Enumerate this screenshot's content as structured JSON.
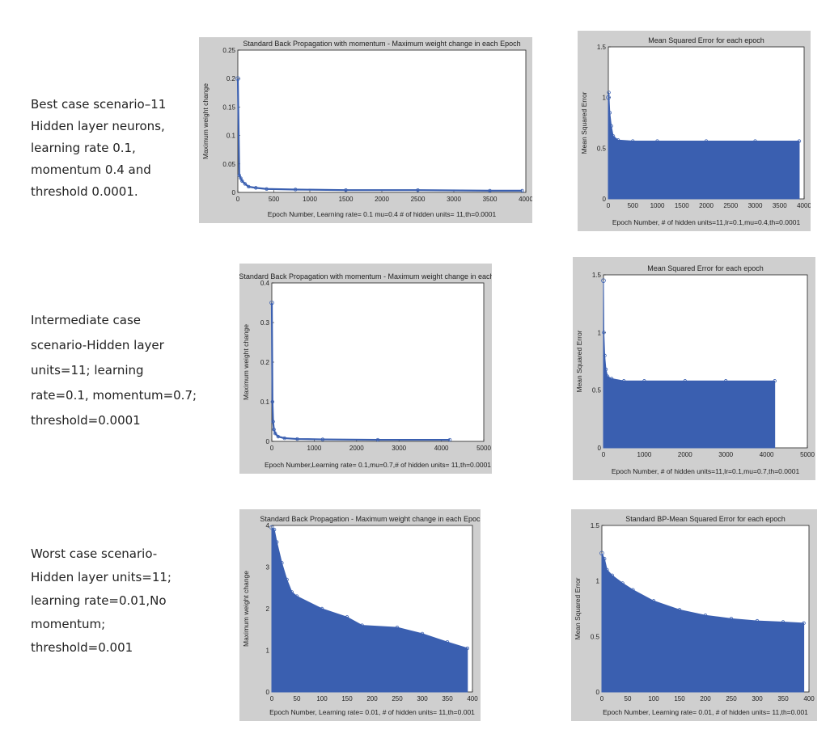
{
  "rows": [
    {
      "desc": [
        "Best case scenario–11",
        "Hidden layer neurons,",
        "learning rate 0.1,",
        "momentum 0.4 and",
        "threshold 0.0001."
      ]
    },
    {
      "desc": [
        "Intermediate case",
        "scenario-Hidden layer",
        "units=11; learning",
        "rate=0.1, momentum=0.7;",
        "threshold=0.0001"
      ]
    },
    {
      "desc": [
        "Worst case scenario-",
        "Hidden layer units=11;",
        "learning rate=0.01,No",
        "momentum;",
        "threshold=0.001"
      ]
    }
  ],
  "chart_data": [
    {
      "type": "line",
      "title": "Standard Back Propagation with momentum - Maximum weight change in each Epoch",
      "xlabel": "Epoch Number, Learning rate= 0.1 mu=0.4 # of hidden units= 11,th=0.0001",
      "ylabel": "Maximum weight change",
      "xlim": [
        0,
        4000
      ],
      "ylim": [
        0,
        0.25
      ],
      "xticks": [
        "0",
        "500",
        "1000",
        "1500",
        "2000",
        "2500",
        "3000",
        "3500",
        "4000"
      ],
      "yticks": [
        "0",
        "0.05",
        "0.1",
        "0.15",
        "0.2",
        "0.25"
      ],
      "series": [
        {
          "x": [
            0,
            20,
            40,
            60,
            100,
            150,
            250,
            400,
            800,
            1500,
            2500,
            3500,
            3950
          ],
          "y": [
            0.2,
            0.03,
            0.025,
            0.02,
            0.015,
            0.01,
            0.008,
            0.006,
            0.005,
            0.004,
            0.004,
            0.003,
            0.003
          ]
        }
      ],
      "color": "#3a5fb0",
      "filled": false
    },
    {
      "type": "area",
      "title": "Mean Squared Error for each epoch",
      "xlabel": "Epoch Number, # of hidden units=11,lr=0.1,mu=0.4,th=0.0001",
      "ylabel": "Mean Squared Error",
      "xlim": [
        0,
        4000
      ],
      "ylim": [
        0,
        1.5
      ],
      "xticks": [
        "0",
        "500",
        "1000",
        "1500",
        "2000",
        "2500",
        "3000",
        "3500",
        "4000"
      ],
      "yticks": [
        "0",
        "0.5",
        "1",
        "1.5"
      ],
      "series": [
        {
          "x": [
            0,
            10,
            30,
            60,
            100,
            200,
            500,
            1000,
            2000,
            3000,
            3900
          ],
          "y": [
            1.0,
            1.05,
            0.85,
            0.72,
            0.62,
            0.58,
            0.57,
            0.57,
            0.57,
            0.57,
            0.57
          ]
        }
      ],
      "color": "#3a5fb0",
      "filled": true
    },
    {
      "type": "line",
      "title": "Standard Back Propagation with momentum - Maximum weight change in each Epoch",
      "xlabel": "Epoch Number,Learning rate= 0.1,mu=0.7,# of hidden units= 11,th=0.0001",
      "ylabel": "Maximum weight change",
      "xlim": [
        0,
        5000
      ],
      "ylim": [
        0,
        0.4
      ],
      "xticks": [
        "0",
        "1000",
        "2000",
        "3000",
        "4000",
        "5000"
      ],
      "yticks": [
        "0",
        "0.1",
        "0.2",
        "0.3",
        "0.4"
      ],
      "series": [
        {
          "x": [
            0,
            15,
            30,
            50,
            80,
            150,
            300,
            600,
            1200,
            2500,
            4200
          ],
          "y": [
            0.35,
            0.1,
            0.05,
            0.03,
            0.02,
            0.012,
            0.008,
            0.006,
            0.005,
            0.004,
            0.004
          ]
        }
      ],
      "color": "#3a5fb0",
      "filled": false
    },
    {
      "type": "area",
      "title": "Mean Squared Error for each epoch",
      "xlabel": "Epoch Number, # of hidden units=11,lr=0.1,mu=0.7,th=0.0001",
      "ylabel": "Mean Squared Error",
      "xlim": [
        0,
        5000
      ],
      "ylim": [
        0,
        1.5
      ],
      "xticks": [
        "0",
        "1000",
        "2000",
        "3000",
        "4000",
        "5000"
      ],
      "yticks": [
        "0",
        "0.5",
        "1",
        "1.5"
      ],
      "series": [
        {
          "x": [
            0,
            10,
            30,
            60,
            100,
            200,
            500,
            1000,
            2000,
            3000,
            4200
          ],
          "y": [
            1.45,
            1.0,
            0.8,
            0.68,
            0.62,
            0.6,
            0.58,
            0.58,
            0.58,
            0.58,
            0.58
          ]
        }
      ],
      "color": "#3a5fb0",
      "filled": true
    },
    {
      "type": "area",
      "title": "Standard Back Propagation - Maximum weight change in each Epoch",
      "xlabel": "Epoch Number, Learning rate= 0.01, # of hidden units= 11,th=0.001",
      "ylabel": "Maximum weight change",
      "xlim": [
        0,
        400
      ],
      "ylim": [
        0,
        4
      ],
      "xticks": [
        "0",
        "50",
        "100",
        "150",
        "200",
        "250",
        "300",
        "350",
        "400"
      ],
      "yticks": [
        "0",
        "1",
        "2",
        "3",
        "4"
      ],
      "series": [
        {
          "x": [
            0,
            5,
            10,
            20,
            30,
            40,
            50,
            100,
            150,
            180,
            250,
            300,
            350,
            390
          ],
          "y": [
            3.95,
            3.9,
            3.6,
            3.1,
            2.7,
            2.4,
            2.3,
            2.0,
            1.8,
            1.6,
            1.55,
            1.4,
            1.2,
            1.05
          ]
        }
      ],
      "color": "#3a5fb0",
      "filled": true
    },
    {
      "type": "area",
      "title": "Standard BP-Mean Squared Error for each epoch",
      "xlabel": "Epoch Number, Learning rate= 0.01, # of hidden units= 11,th=0.001",
      "ylabel": "Mean Squared Error",
      "xlim": [
        0,
        400
      ],
      "ylim": [
        0,
        1.5
      ],
      "xticks": [
        "0",
        "50",
        "100",
        "150",
        "200",
        "250",
        "300",
        "350",
        "400"
      ],
      "yticks": [
        "0",
        "0.5",
        "1",
        "1.5"
      ],
      "series": [
        {
          "x": [
            0,
            5,
            10,
            20,
            40,
            60,
            100,
            150,
            200,
            250,
            300,
            350,
            390
          ],
          "y": [
            1.25,
            1.2,
            1.1,
            1.05,
            0.98,
            0.92,
            0.82,
            0.74,
            0.69,
            0.66,
            0.64,
            0.63,
            0.62
          ]
        }
      ],
      "color": "#3a5fb0",
      "filled": true
    }
  ]
}
